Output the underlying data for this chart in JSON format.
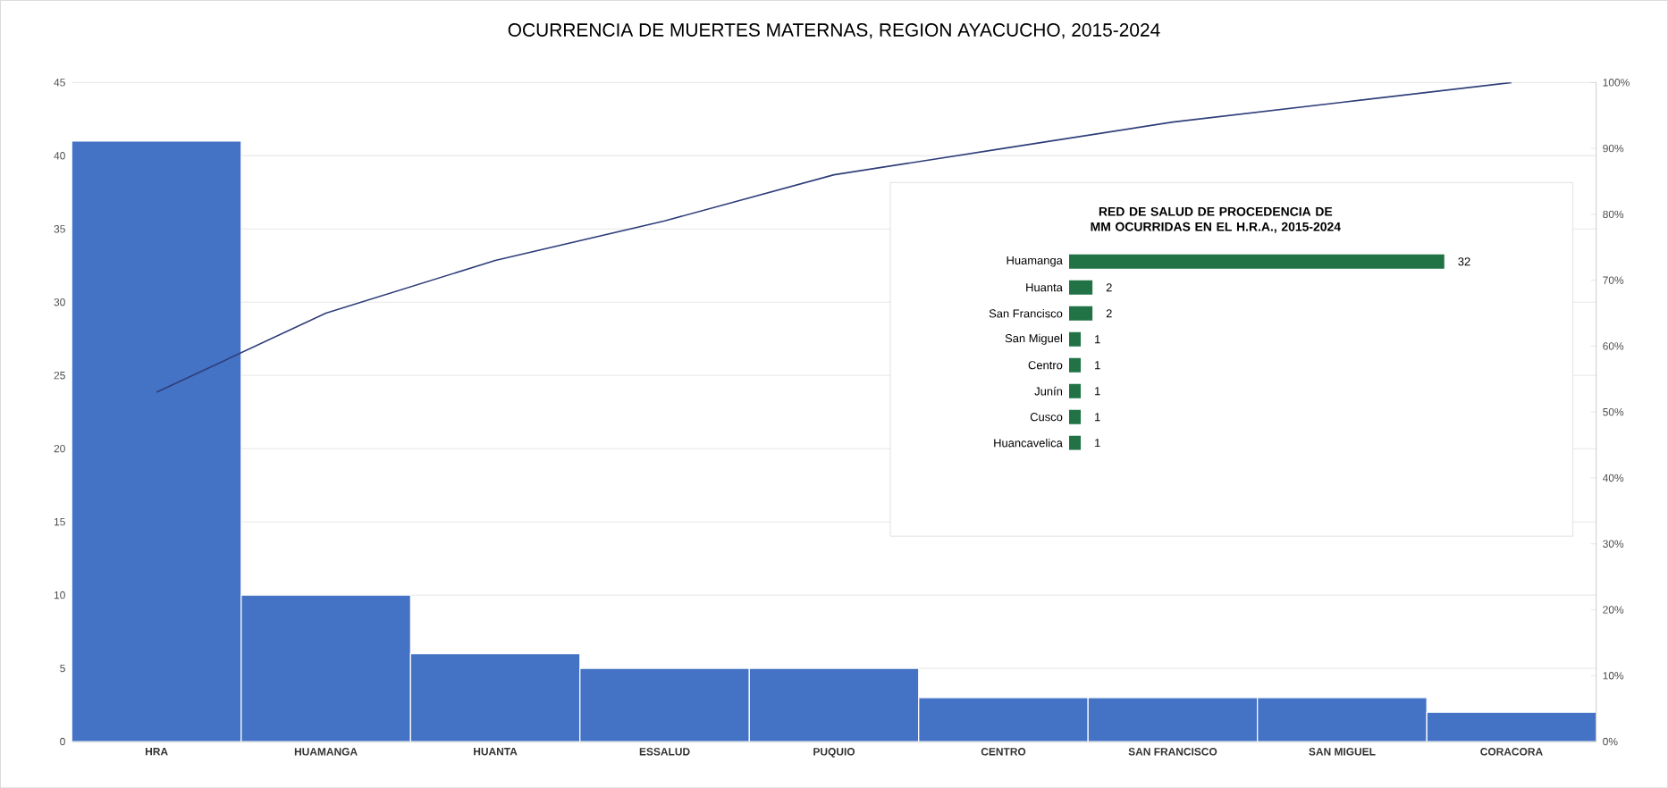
{
  "chart_data": [
    {
      "type": "bar",
      "title": "OCURRENCIA DE MUERTES MATERNAS, REGION AYACUCHO, 2015-2024",
      "categories": [
        "HRA",
        "HUAMANGA",
        "HUANTA",
        "ESSALUD",
        "PUQUIO",
        "CENTRO",
        "SAN FRANCISCO",
        "SAN MIGUEL",
        "CORACORA"
      ],
      "series": [
        {
          "color": "#4472c4",
          "values": [
            41,
            10,
            6,
            5,
            5,
            3,
            3,
            3,
            2
          ]
        },
        {
          "type": "line",
          "axis": "y2",
          "color": "#2f3e7a",
          "marker": "none",
          "values": [
            53,
            65,
            73,
            79,
            86,
            90,
            94,
            97,
            100
          ]
        }
      ],
      "ylim": [
        0,
        45
      ],
      "yticks": [
        0,
        5,
        10,
        15,
        20,
        25,
        30,
        35,
        40,
        45
      ],
      "y2lim": [
        0,
        100
      ],
      "y2ticks": [
        {
          "value": 0,
          "label": "0%"
        },
        {
          "value": 10,
          "label": "10%"
        },
        {
          "value": 20,
          "label": "20%"
        },
        {
          "value": 30,
          "label": "30%"
        },
        {
          "value": 40,
          "label": "40%"
        },
        {
          "value": 50,
          "label": "50%"
        },
        {
          "value": 60,
          "label": "60%"
        },
        {
          "value": 70,
          "label": "70%"
        },
        {
          "value": 80,
          "label": "80%"
        },
        {
          "value": 90,
          "label": "90%"
        },
        {
          "value": 100,
          "label": "100%"
        }
      ],
      "grid": "y"
    },
    {
      "type": "bar",
      "orientation": "horizontal",
      "title": "RED DE SALUD DE PROCEDENCIA DE MM OCURRIDAS EN EL H.R.A., 2015-2024",
      "categories": [
        "Huamanga",
        "Huanta",
        "San Francisco",
        "San Miguel",
        "Centro",
        "Junín",
        "Cusco",
        "Huancavelica"
      ],
      "values": [
        32,
        2,
        2,
        1,
        1,
        1,
        1,
        1
      ],
      "color": "#217346",
      "data_labels": true
    }
  ]
}
